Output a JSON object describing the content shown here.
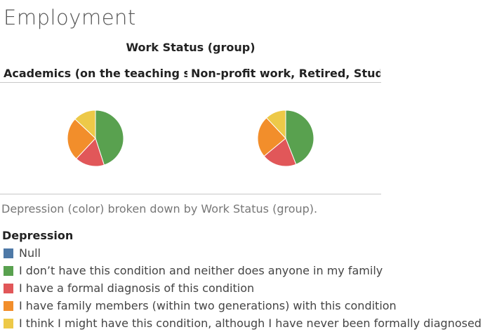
{
  "page": {
    "title": "Employment",
    "caption": "Depression (color) broken down by Work Status (group)."
  },
  "chart_data": {
    "type": "pie",
    "title": "",
    "group_field": "Work Status (group)",
    "color_field": "Depression",
    "categories": [
      "Null",
      "I don’t have this condition and neither does anyone in my family",
      "I have a formal diagnosis of this condition",
      "I have family members (within two generations) with this condition",
      "I think I might have this condition, although I have never been formally diagnosed"
    ],
    "colors": [
      "#4e79a7",
      "#59a14f",
      "#e15759",
      "#f28e2b",
      "#edc948"
    ],
    "panels": [
      {
        "label": "Academics (on the teaching si..",
        "values": [
          0,
          45,
          17,
          25,
          13
        ]
      },
      {
        "label": "Non-profit work, Retired, Stud..",
        "values": [
          0,
          44,
          20,
          24,
          12
        ]
      }
    ]
  }
}
